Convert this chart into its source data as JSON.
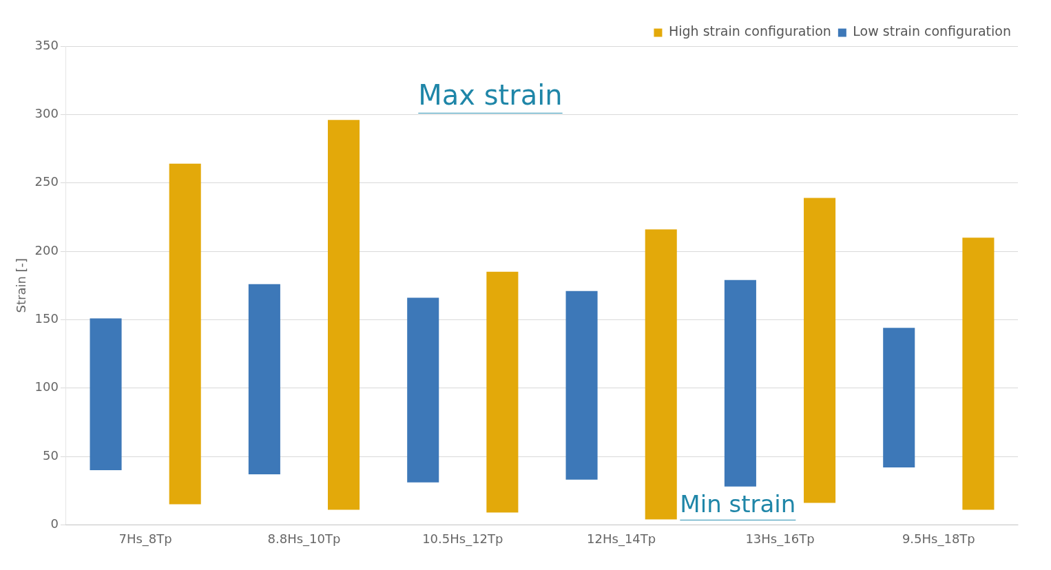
{
  "chart_data": {
    "type": "bar",
    "ylabel": "Strain [-]",
    "categories": [
      "7Hs_8Tp",
      "8.8Hs_10Tp",
      "10.5Hs_12Tp",
      "12Hs_14Tp",
      "13Hs_16Tp",
      "9.5Hs_18Tp"
    ],
    "series": [
      {
        "name": "Low strain configuration",
        "color": "#3d78b8",
        "base": [
          40,
          37,
          31,
          33,
          28,
          42
        ],
        "values": [
          111,
          139,
          135,
          138,
          151,
          102
        ]
      },
      {
        "name": "High strain configuration",
        "color": "#e3a90a",
        "base": [
          15,
          11,
          9,
          4,
          16,
          11
        ],
        "values": [
          249,
          285,
          176,
          212,
          223,
          199
        ]
      }
    ],
    "ylim": [
      0,
      350
    ],
    "yticks": [
      0,
      50,
      100,
      150,
      200,
      250,
      300,
      350
    ],
    "grid": "y",
    "legend": "top right",
    "annotations": [
      "Max strain",
      "Min strain"
    ]
  }
}
